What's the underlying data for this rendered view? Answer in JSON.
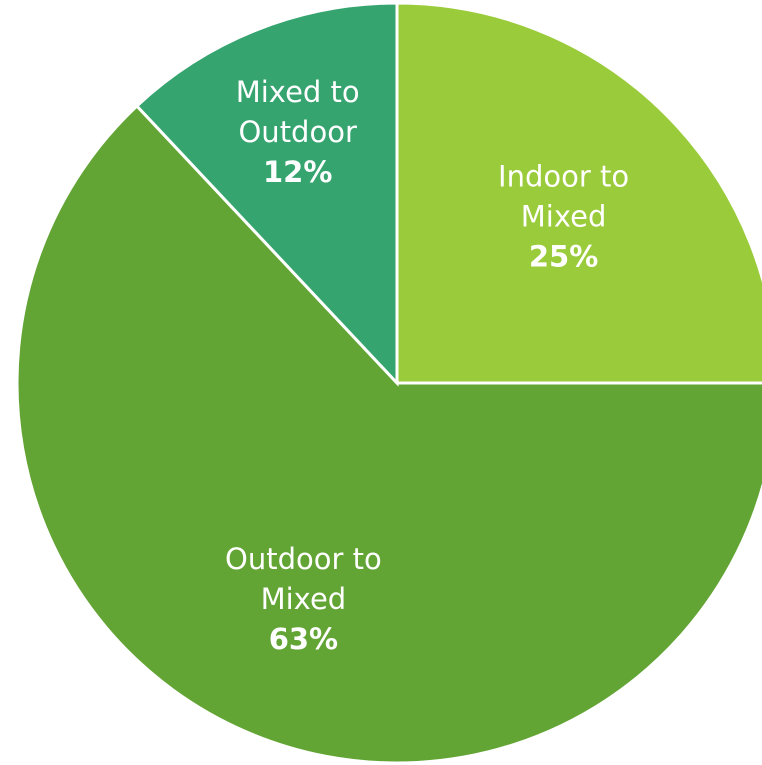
{
  "chart_data": {
    "type": "pie",
    "title": "",
    "slices": [
      {
        "label_lines": [
          "Indoor to",
          "Mixed"
        ],
        "value_label": "25%",
        "value": 25,
        "color": "#9acb3a"
      },
      {
        "label_lines": [
          "Outdoor to",
          "Mixed"
        ],
        "value_label": "63%",
        "value": 63,
        "color": "#62a535"
      },
      {
        "label_lines": [
          "Mixed to",
          "Outdoor"
        ],
        "value_label": "12%",
        "value": 12,
        "color": "#35a46f"
      }
    ],
    "start_angle": "12 o'clock",
    "direction": "clockwise",
    "legend": "none"
  }
}
